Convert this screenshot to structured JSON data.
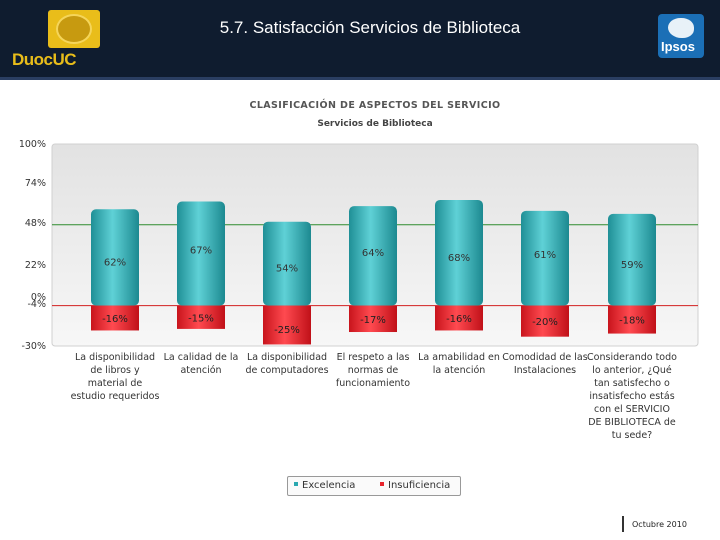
{
  "header": {
    "title": "5.7. Satisfacción Servicios de Biblioteca",
    "logo_left": "DuocUC",
    "logo_right": "Ipsos"
  },
  "chart_data": {
    "type": "bar",
    "title": "CLASIFICACIÓN DE ASPECTOS DEL SERVICIO",
    "subtitle": "Servicios de Biblioteca",
    "categories": [
      "La disponibilidad de libros y material de estudio requeridos",
      "La calidad de la atención",
      "La disponibilidad de computadores",
      "El respeto a las normas de funcionamiento",
      "La amabilidad en la atención",
      "Comodidad de las Instalaciones",
      "Considerando todo lo anterior, ¿Qué tan satisfecho o insatisfecho estás con el SERVICIO DE BIBLIOTECA de tu sede?"
    ],
    "series": [
      {
        "name": "Excelencia",
        "values": [
          62,
          67,
          54,
          64,
          68,
          61,
          59
        ],
        "labels": [
          "62%",
          "67%",
          "54%",
          "64%",
          "68%",
          "61%",
          "59%"
        ],
        "color": "#2aa8b0"
      },
      {
        "name": "Insuficiencia",
        "values": [
          -16,
          -15,
          -25,
          -17,
          -16,
          -20,
          -18
        ],
        "labels": [
          "-16%",
          "-15%",
          "-25%",
          "-17%",
          "-16%",
          "-20%",
          "-18%"
        ],
        "color": "#e8242c"
      }
    ],
    "y_ticks": [
      {
        "value": 100,
        "label": "100%"
      },
      {
        "value": 74,
        "label": "74%"
      },
      {
        "value": 48,
        "label": "48%"
      },
      {
        "value": 22,
        "label": "22%"
      },
      {
        "value": 0,
        "label": "0%"
      },
      {
        "value": -4,
        "label": "-4%"
      },
      {
        "value": -30,
        "label": "-30%"
      }
    ],
    "ylim": [
      -30,
      100
    ],
    "reference_lines": [
      {
        "value": 48,
        "color": "#2e8b2e"
      },
      {
        "value": -4,
        "color": "#d22020"
      }
    ],
    "legend_position": "bottom"
  },
  "footer": {
    "date": "Octubre 2010"
  }
}
